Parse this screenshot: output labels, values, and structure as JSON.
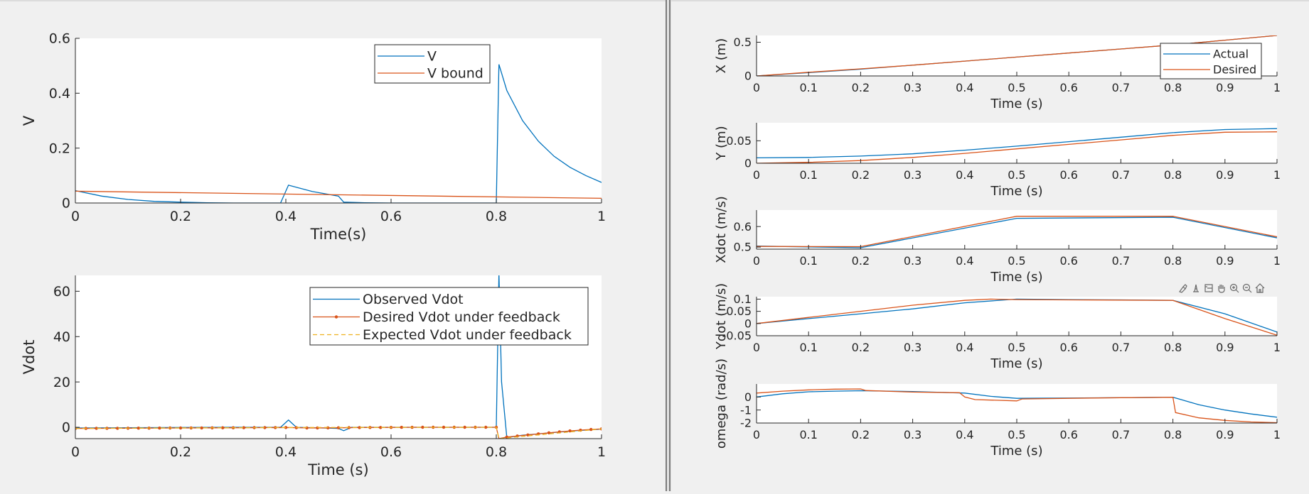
{
  "colors": {
    "series_blue": "#0072BD",
    "series_orange": "#D95319",
    "series_yellow": "#EDB120",
    "axes_bg": "#ffffff",
    "figure_bg": "#f0f0f0",
    "text": "#262626"
  },
  "toolbar": {
    "icons": [
      "brush-icon",
      "data-tips-icon",
      "export-icon",
      "pan-icon",
      "zoom-in-icon",
      "zoom-out-icon",
      "home-icon"
    ]
  },
  "chart_data": [
    {
      "id": "v-plot",
      "type": "line",
      "title": "",
      "xlabel": "Time(s)",
      "ylabel": "V",
      "xlim": [
        0,
        1
      ],
      "ylim": [
        0,
        0.6
      ],
      "xticks": [
        0,
        0.2,
        0.4,
        0.6,
        0.8,
        1
      ],
      "xticklabels": [
        "0",
        "0.2",
        "0.4",
        "0.6",
        "0.8",
        "1"
      ],
      "yticks": [
        0,
        0.2,
        0.4,
        0.6
      ],
      "yticklabels": [
        "0",
        "0.2",
        "0.4",
        "0.6"
      ],
      "grid": false,
      "legend_position": "top-right",
      "series": [
        {
          "name": "V",
          "color": "blue",
          "x": [
            0,
            0.05,
            0.1,
            0.15,
            0.2,
            0.25,
            0.3,
            0.35,
            0.39,
            0.405,
            0.45,
            0.5,
            0.51,
            0.55,
            0.6,
            0.65,
            0.7,
            0.75,
            0.8,
            0.805,
            0.82,
            0.85,
            0.88,
            0.91,
            0.94,
            0.97,
            1.0
          ],
          "y": [
            0.045,
            0.025,
            0.013,
            0.006,
            0.003,
            0.001,
            0.0,
            0.0,
            0.0,
            0.065,
            0.042,
            0.025,
            0.003,
            0.001,
            0.0,
            0.0,
            0.0,
            0.0,
            0.0,
            0.505,
            0.41,
            0.3,
            0.225,
            0.17,
            0.13,
            0.1,
            0.075
          ]
        },
        {
          "name": "V bound",
          "color": "orange",
          "x": [
            0,
            1
          ],
          "y": [
            0.043,
            0.017
          ]
        }
      ]
    },
    {
      "id": "vdot-plot",
      "type": "line",
      "title": "",
      "xlabel": "Time (s)",
      "ylabel": "Vdot",
      "xlim": [
        0,
        1
      ],
      "ylim": [
        -5,
        67
      ],
      "xticks": [
        0,
        0.2,
        0.4,
        0.6,
        0.8,
        1
      ],
      "xticklabels": [
        "0",
        "0.2",
        "0.4",
        "0.6",
        "0.8",
        "1"
      ],
      "yticks": [
        0,
        20,
        40,
        60
      ],
      "yticklabels": [
        "0",
        "20",
        "40",
        "60"
      ],
      "grid": false,
      "legend_position": "top-right",
      "series": [
        {
          "name": "Observed Vdot",
          "color": "blue",
          "x": [
            0,
            0.1,
            0.2,
            0.3,
            0.39,
            0.405,
            0.42,
            0.5,
            0.51,
            0.525,
            0.6,
            0.7,
            0.79,
            0.8,
            0.805,
            0.81,
            0.82,
            0.85,
            0.9,
            0.95,
            1.0
          ],
          "y": [
            -0.3,
            -0.2,
            -0.1,
            0,
            0,
            3.2,
            0,
            -0.5,
            -1.5,
            0,
            0,
            0,
            0,
            0,
            68,
            20,
            -4.5,
            -3.5,
            -2.5,
            -1.5,
            -0.8
          ]
        },
        {
          "name": "Desired Vdot under feedback",
          "color": "orange",
          "marker": "dot",
          "x": [
            0,
            0.05,
            0.1,
            0.15,
            0.2,
            0.25,
            0.3,
            0.35,
            0.4,
            0.45,
            0.5,
            0.55,
            0.6,
            0.65,
            0.7,
            0.75,
            0.8,
            0.805,
            0.82,
            0.85,
            0.88,
            0.91,
            0.94,
            0.97,
            1.0
          ],
          "y": [
            -0.5,
            -0.45,
            -0.4,
            -0.35,
            -0.3,
            -0.25,
            -0.2,
            -0.15,
            -0.1,
            -0.3,
            -0.2,
            -0.1,
            -0.05,
            0,
            0,
            0,
            0,
            -5,
            -4.3,
            -3.6,
            -2.9,
            -2.2,
            -1.6,
            -1.1,
            -0.7
          ]
        },
        {
          "name": "Expected Vdot under feedback",
          "color": "yellow",
          "dashed": true,
          "x": [
            0,
            0.4,
            0.8,
            0.805,
            1.0
          ],
          "y": [
            -0.5,
            -0.1,
            0,
            -5,
            -0.7
          ]
        }
      ]
    },
    {
      "id": "x-plot",
      "type": "line",
      "title": "",
      "xlabel": "Time (s)",
      "ylabel": "X (m)",
      "xlim": [
        0,
        1
      ],
      "ylim": [
        0,
        0.6
      ],
      "xticks": [
        0,
        0.1,
        0.2,
        0.3,
        0.4,
        0.5,
        0.6,
        0.7,
        0.8,
        0.9,
        1
      ],
      "xticklabels": [
        "0",
        "0.1",
        "0.2",
        "0.3",
        "0.4",
        "0.5",
        "0.6",
        "0.7",
        "0.8",
        "0.9",
        "1"
      ],
      "yticks": [
        0,
        0.5
      ],
      "yticklabels": [
        "0",
        "0.5"
      ],
      "grid": false,
      "legend_position": "top-right",
      "series": [
        {
          "name": "Actual",
          "color": "blue",
          "x": [
            0,
            0.1,
            0.2,
            0.3,
            0.4,
            0.5,
            0.6,
            0.7,
            0.8,
            0.9,
            1.0
          ],
          "y": [
            0,
            0.05,
            0.1,
            0.16,
            0.22,
            0.28,
            0.34,
            0.4,
            0.46,
            0.53,
            0.6
          ]
        },
        {
          "name": "Desired",
          "color": "orange",
          "x": [
            0,
            0.1,
            0.2,
            0.3,
            0.4,
            0.5,
            0.6,
            0.7,
            0.8,
            0.9,
            1.0
          ],
          "y": [
            0,
            0.055,
            0.105,
            0.16,
            0.22,
            0.28,
            0.34,
            0.4,
            0.46,
            0.53,
            0.6
          ]
        }
      ]
    },
    {
      "id": "y-plot",
      "type": "line",
      "title": "",
      "xlabel": "Time (s)",
      "ylabel": "Y (m)",
      "xlim": [
        0,
        1
      ],
      "ylim": [
        0,
        0.09
      ],
      "xticks": [
        0,
        0.1,
        0.2,
        0.3,
        0.4,
        0.5,
        0.6,
        0.7,
        0.8,
        0.9,
        1
      ],
      "xticklabels": [
        "0",
        "0.1",
        "0.2",
        "0.3",
        "0.4",
        "0.5",
        "0.6",
        "0.7",
        "0.8",
        "0.9",
        "1"
      ],
      "yticks": [
        0,
        0.05
      ],
      "yticklabels": [
        "0",
        "0.05"
      ],
      "grid": false,
      "series": [
        {
          "name": "",
          "color": "blue",
          "x": [
            0,
            0.1,
            0.2,
            0.3,
            0.4,
            0.5,
            0.6,
            0.7,
            0.8,
            0.9,
            1.0
          ],
          "y": [
            0.012,
            0.013,
            0.016,
            0.021,
            0.029,
            0.038,
            0.048,
            0.058,
            0.068,
            0.075,
            0.077
          ]
        },
        {
          "name": "",
          "color": "orange",
          "x": [
            0,
            0.1,
            0.2,
            0.3,
            0.4,
            0.5,
            0.6,
            0.7,
            0.8,
            0.9,
            1.0
          ],
          "y": [
            0.0,
            0.002,
            0.006,
            0.013,
            0.022,
            0.032,
            0.042,
            0.052,
            0.062,
            0.069,
            0.07
          ]
        }
      ]
    },
    {
      "id": "xdot-plot",
      "type": "line",
      "title": "",
      "xlabel": "Time (s)",
      "ylabel": "Xdot (m/s)",
      "xlim": [
        0,
        1
      ],
      "ylim": [
        0.49,
        0.68
      ],
      "xticks": [
        0,
        0.1,
        0.2,
        0.3,
        0.4,
        0.5,
        0.6,
        0.7,
        0.8,
        0.9,
        1
      ],
      "xticklabels": [
        "0",
        "0.1",
        "0.2",
        "0.3",
        "0.4",
        "0.5",
        "0.6",
        "0.7",
        "0.8",
        "0.9",
        "1"
      ],
      "yticks": [
        0.5,
        0.6
      ],
      "yticklabels": [
        "0.5",
        "0.6"
      ],
      "grid": false,
      "series": [
        {
          "name": "",
          "color": "blue",
          "x": [
            0,
            0.2,
            0.5,
            0.8,
            1.0
          ],
          "y": [
            0.505,
            0.497,
            0.64,
            0.645,
            0.545
          ]
        },
        {
          "name": "",
          "color": "orange",
          "x": [
            0,
            0.2,
            0.5,
            0.8,
            1.0
          ],
          "y": [
            0.503,
            0.502,
            0.65,
            0.65,
            0.55
          ]
        }
      ]
    },
    {
      "id": "ydot-plot",
      "type": "line",
      "title": "",
      "xlabel": "Time (s)",
      "ylabel": "Ydot (m/s)",
      "xlim": [
        0,
        1
      ],
      "ylim": [
        -0.05,
        0.11
      ],
      "xticks": [
        0,
        0.1,
        0.2,
        0.3,
        0.4,
        0.5,
        0.6,
        0.7,
        0.8,
        0.9,
        1
      ],
      "xticklabels": [
        "0",
        "0.1",
        "0.2",
        "0.3",
        "0.4",
        "0.5",
        "0.6",
        "0.7",
        "0.8",
        "0.9",
        "1"
      ],
      "yticks": [
        -0.05,
        0,
        0.05,
        0.1
      ],
      "yticklabels": [
        "-0.05",
        "0",
        "0.05",
        "0.1"
      ],
      "grid": false,
      "series": [
        {
          "name": "",
          "color": "blue",
          "x": [
            0,
            0.1,
            0.2,
            0.3,
            0.4,
            0.5,
            0.6,
            0.7,
            0.8,
            0.9,
            1.0
          ],
          "y": [
            0.0,
            0.02,
            0.04,
            0.06,
            0.085,
            0.1,
            0.098,
            0.097,
            0.095,
            0.04,
            -0.035
          ]
        },
        {
          "name": "",
          "color": "orange",
          "x": [
            0,
            0.1,
            0.2,
            0.3,
            0.4,
            0.45,
            0.5,
            0.6,
            0.7,
            0.8,
            0.9,
            1.0
          ],
          "y": [
            0.0,
            0.025,
            0.05,
            0.075,
            0.095,
            0.1,
            0.098,
            0.097,
            0.096,
            0.095,
            0.02,
            -0.048
          ]
        }
      ]
    },
    {
      "id": "omega-plot",
      "type": "line",
      "title": "",
      "xlabel": "Time (s)",
      "ylabel": "omega (rad/s)",
      "xlim": [
        0,
        1
      ],
      "ylim": [
        -2,
        1
      ],
      "xticks": [
        0,
        0.1,
        0.2,
        0.3,
        0.4,
        0.5,
        0.6,
        0.7,
        0.8,
        0.9,
        1
      ],
      "xticklabels": [
        "0",
        "0.1",
        "0.2",
        "0.3",
        "0.4",
        "0.5",
        "0.6",
        "0.7",
        "0.8",
        "0.9",
        "1"
      ],
      "yticks": [
        -2,
        -1,
        0
      ],
      "yticklabels": [
        "-2",
        "-1",
        "0"
      ],
      "grid": false,
      "series": [
        {
          "name": "",
          "color": "blue",
          "x": [
            0,
            0.05,
            0.1,
            0.15,
            0.2,
            0.3,
            0.4,
            0.45,
            0.5,
            0.6,
            0.7,
            0.8,
            0.85,
            0.9,
            0.95,
            1.0
          ],
          "y": [
            0.0,
            0.25,
            0.4,
            0.45,
            0.48,
            0.42,
            0.3,
            0.05,
            -0.1,
            -0.08,
            -0.05,
            -0.02,
            -0.6,
            -1.0,
            -1.3,
            -1.55
          ]
        },
        {
          "name": "",
          "color": "orange",
          "x": [
            0,
            0.05,
            0.1,
            0.15,
            0.2,
            0.21,
            0.3,
            0.39,
            0.4,
            0.42,
            0.5,
            0.51,
            0.6,
            0.7,
            0.8,
            0.805,
            0.85,
            0.9,
            0.95,
            1.0
          ],
          "y": [
            0.3,
            0.45,
            0.55,
            0.6,
            0.62,
            0.5,
            0.38,
            0.33,
            0.0,
            -0.2,
            -0.3,
            -0.15,
            -0.1,
            -0.05,
            -0.02,
            -1.2,
            -1.6,
            -1.8,
            -1.92,
            -1.97
          ]
        }
      ]
    }
  ]
}
